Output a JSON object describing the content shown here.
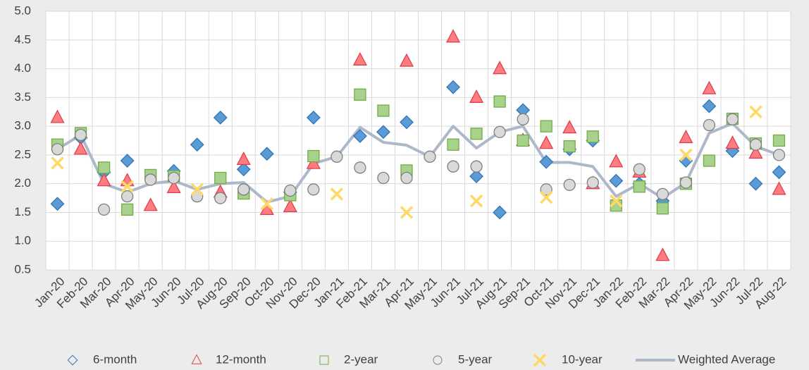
{
  "chart_data": {
    "type": "line",
    "categories": [
      "Jan-20",
      "Feb-20",
      "Mar-20",
      "Apr-20",
      "May-20",
      "Jun-20",
      "Jul-20",
      "Aug-20",
      "Sep-20",
      "Oct-20",
      "Nov-20",
      "Dec-20",
      "Jan-21",
      "Feb-21",
      "Mar-21",
      "Apr-21",
      "May-21",
      "Jun-21",
      "Jul-21",
      "Aug-21",
      "Sep-21",
      "Oct-21",
      "Nov-21",
      "Dec-21",
      "Jan-22",
      "Feb-22",
      "Mar-22",
      "Apr-22",
      "May-22",
      "Jun-22",
      "Jul-22",
      "Aug-22"
    ],
    "ylim": [
      0.5,
      5.0
    ],
    "yticks": [
      0.5,
      {
        "value": 1.0,
        "label": "1.0"
      },
      1.5,
      {
        "value": 2.0,
        "label": "2.0"
      },
      2.5,
      {
        "value": 3.0,
        "label": "3.0"
      },
      3.5,
      {
        "value": 4.0,
        "label": "4.0"
      },
      4.5,
      {
        "value": 5.0,
        "label": "5.0"
      }
    ],
    "grid": true,
    "legend": "bottom",
    "series": [
      {
        "name": "6-month",
        "marker": "diamond",
        "color": "#5b9bd5",
        "edge": "#2e75b6",
        "values": [
          1.65,
          2.8,
          2.2,
          2.4,
          null,
          2.22,
          2.68,
          3.15,
          2.25,
          2.52,
          1.85,
          3.15,
          null,
          2.83,
          2.9,
          3.07,
          null,
          3.68,
          2.13,
          1.5,
          3.28,
          2.38,
          2.6,
          2.75,
          2.05,
          2.0,
          1.7,
          2.4,
          3.35,
          2.57,
          2.0,
          2.2
        ]
      },
      {
        "name": "12-month",
        "marker": "triangle",
        "color": "#ff7c80",
        "edge": "#e0404f",
        "values": [
          3.15,
          2.6,
          2.05,
          2.05,
          1.62,
          1.93,
          null,
          1.85,
          2.42,
          1.55,
          1.6,
          2.35,
          null,
          4.15,
          null,
          4.13,
          null,
          4.55,
          3.5,
          4.0,
          2.75,
          2.7,
          2.97,
          2.0,
          2.38,
          2.2,
          0.75,
          2.8,
          3.65,
          2.7,
          2.53,
          1.9
        ]
      },
      {
        "name": "2-year",
        "marker": "square",
        "color": "#a9d18e",
        "edge": "#70ad47",
        "values": [
          2.68,
          2.88,
          2.28,
          1.55,
          2.15,
          2.13,
          null,
          2.1,
          1.83,
          null,
          1.8,
          2.48,
          null,
          3.55,
          3.27,
          2.23,
          null,
          2.68,
          2.87,
          3.43,
          2.75,
          3.0,
          2.65,
          2.82,
          1.62,
          1.95,
          1.57,
          2.0,
          2.4,
          3.13,
          2.7,
          2.75
        ]
      },
      {
        "name": "5-year",
        "marker": "circle",
        "color": "#d9d9d9",
        "edge": "#7f7f7f",
        "values": [
          2.6,
          2.85,
          1.55,
          1.78,
          2.07,
          2.1,
          1.78,
          1.75,
          1.9,
          null,
          1.88,
          1.9,
          2.47,
          2.28,
          2.1,
          2.1,
          2.47,
          2.3,
          2.3,
          2.9,
          3.12,
          1.9,
          1.98,
          2.02,
          null,
          2.25,
          1.82,
          2.02,
          3.02,
          3.12,
          2.68,
          2.5
        ]
      },
      {
        "name": "10-year",
        "marker": "cross",
        "color": "#ffd966",
        "edge": "#ffc000",
        "values": [
          2.36,
          null,
          null,
          1.95,
          null,
          null,
          1.9,
          null,
          null,
          1.65,
          null,
          null,
          1.82,
          null,
          null,
          1.5,
          null,
          null,
          1.7,
          null,
          null,
          1.76,
          null,
          null,
          1.7,
          null,
          null,
          2.5,
          null,
          null,
          3.25,
          null
        ]
      },
      {
        "name": "Weighted Average",
        "marker": "line",
        "color": "#adb9ca",
        "values": [
          2.6,
          2.85,
          2.0,
          1.85,
          2.0,
          2.05,
          1.9,
          2.0,
          2.02,
          1.68,
          1.78,
          2.35,
          2.47,
          2.98,
          2.72,
          2.67,
          2.47,
          3.0,
          2.62,
          2.9,
          3.0,
          2.37,
          2.37,
          2.3,
          1.78,
          2.0,
          1.75,
          2.02,
          2.88,
          3.05,
          2.65,
          2.5
        ]
      }
    ]
  }
}
